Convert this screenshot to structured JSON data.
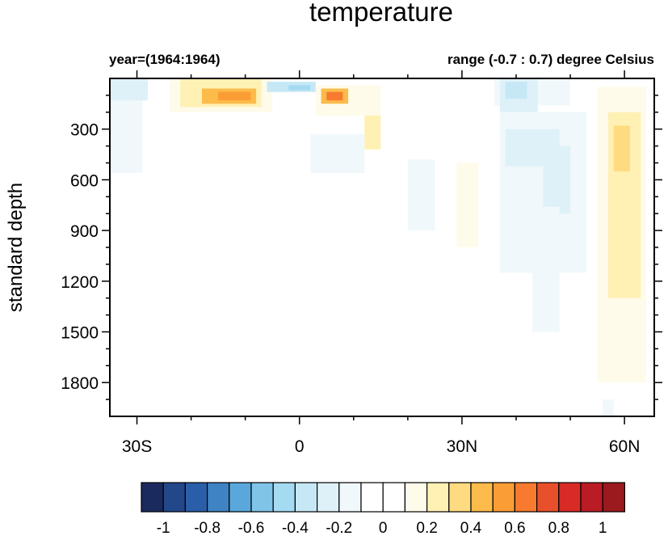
{
  "chart_data": {
    "type": "heatmap",
    "title": "temperature",
    "left_string": "year=(1964:1964)",
    "right_string": "range (-0.7 : 0.7) degree Celsius",
    "ylabel": "standard depth",
    "xlabel": "",
    "xlim": [
      -35,
      65.5
    ],
    "ylim": [
      0,
      2000
    ],
    "y_reversed": true,
    "x_ticks": [
      {
        "value": -30,
        "label": "30S"
      },
      {
        "value": 0,
        "label": "0"
      },
      {
        "value": 30,
        "label": "30N"
      },
      {
        "value": 60,
        "label": "60N"
      }
    ],
    "y_ticks": [
      {
        "value": 300,
        "label": "300"
      },
      {
        "value": 600,
        "label": "600"
      },
      {
        "value": 900,
        "label": "900"
      },
      {
        "value": 1200,
        "label": "1200"
      },
      {
        "value": 1500,
        "label": "1500"
      },
      {
        "value": 1800,
        "label": "1800"
      }
    ],
    "colorbar": {
      "levels": [
        "-1",
        "-0.9",
        "-0.8",
        "-0.7",
        "-0.6",
        "-0.5",
        "-0.4",
        "-0.3",
        "-0.2",
        "-0.1",
        "0",
        "0.1",
        "0.2",
        "0.3",
        "0.4",
        "0.5",
        "0.6",
        "0.7",
        "0.8",
        "0.9",
        "1"
      ],
      "labels": [
        "-1",
        "-0.8",
        "-0.6",
        "-0.4",
        "-0.2",
        "0",
        "0.2",
        "0.4",
        "0.6",
        "0.8",
        "1"
      ],
      "colors": [
        "#1b2a5e",
        "#22488a",
        "#2a5ea8",
        "#3f83c4",
        "#5aa8db",
        "#80c4e8",
        "#a4dbf3",
        "#c6e8f6",
        "#def1f8",
        "#f0f8fb",
        "#ffffff",
        "#ffffff",
        "#fffbea",
        "#fff0b4",
        "#fedb80",
        "#fdbb4b",
        "#fb9d35",
        "#f77a2f",
        "#e8502b",
        "#d92b26",
        "#b91c24",
        "#9a1a1e"
      ]
    },
    "cells": [
      {
        "lat": [
          -35,
          -29
        ],
        "depth": [
          0,
          560
        ],
        "value": -0.15
      },
      {
        "lat": [
          -35,
          -28
        ],
        "depth": [
          0,
          130
        ],
        "value": -0.25
      },
      {
        "lat": [
          -24,
          -5
        ],
        "depth": [
          0,
          200
        ],
        "value": 0.15
      },
      {
        "lat": [
          -22,
          -7
        ],
        "depth": [
          0,
          170
        ],
        "value": 0.25
      },
      {
        "lat": [
          -18,
          -8
        ],
        "depth": [
          60,
          150
        ],
        "value": 0.45
      },
      {
        "lat": [
          -15,
          -9
        ],
        "depth": [
          80,
          130
        ],
        "value": 0.55
      },
      {
        "lat": [
          -6,
          3
        ],
        "depth": [
          20,
          80
        ],
        "value": -0.35
      },
      {
        "lat": [
          -2,
          2
        ],
        "depth": [
          40,
          70
        ],
        "value": -0.45
      },
      {
        "lat": [
          3,
          15
        ],
        "depth": [
          40,
          220
        ],
        "value": 0.15
      },
      {
        "lat": [
          4,
          9
        ],
        "depth": [
          60,
          150
        ],
        "value": 0.45
      },
      {
        "lat": [
          5,
          8
        ],
        "depth": [
          80,
          130
        ],
        "value": 0.65
      },
      {
        "lat": [
          12,
          15
        ],
        "depth": [
          220,
          420
        ],
        "value": 0.25
      },
      {
        "lat": [
          2,
          12
        ],
        "depth": [
          330,
          560
        ],
        "value": -0.15
      },
      {
        "lat": [
          20,
          25
        ],
        "depth": [
          480,
          900
        ],
        "value": -0.15
      },
      {
        "lat": [
          29,
          33
        ],
        "depth": [
          500,
          1000
        ],
        "value": 0.15
      },
      {
        "lat": [
          36,
          50
        ],
        "depth": [
          0,
          160
        ],
        "value": -0.15
      },
      {
        "lat": [
          37,
          44
        ],
        "depth": [
          0,
          200
        ],
        "value": -0.25
      },
      {
        "lat": [
          38,
          42
        ],
        "depth": [
          20,
          120
        ],
        "value": -0.35
      },
      {
        "lat": [
          37,
          53
        ],
        "depth": [
          200,
          1150
        ],
        "value": -0.15
      },
      {
        "lat": [
          38,
          48
        ],
        "depth": [
          300,
          520
        ],
        "value": -0.25
      },
      {
        "lat": [
          45,
          50
        ],
        "depth": [
          400,
          800
        ],
        "value": -0.25
      },
      {
        "lat": [
          44,
          48
        ],
        "depth": [
          760,
          1100
        ],
        "value": -0.2
      },
      {
        "lat": [
          43,
          48
        ],
        "depth": [
          1100,
          1500
        ],
        "value": -0.15
      },
      {
        "lat": [
          55,
          64
        ],
        "depth": [
          50,
          1800
        ],
        "value": 0.15
      },
      {
        "lat": [
          57,
          63
        ],
        "depth": [
          200,
          1300
        ],
        "value": 0.25
      },
      {
        "lat": [
          58,
          61
        ],
        "depth": [
          280,
          550
        ],
        "value": 0.35
      },
      {
        "lat": [
          56,
          58
        ],
        "depth": [
          1900,
          2000
        ],
        "value": -0.15
      }
    ]
  }
}
